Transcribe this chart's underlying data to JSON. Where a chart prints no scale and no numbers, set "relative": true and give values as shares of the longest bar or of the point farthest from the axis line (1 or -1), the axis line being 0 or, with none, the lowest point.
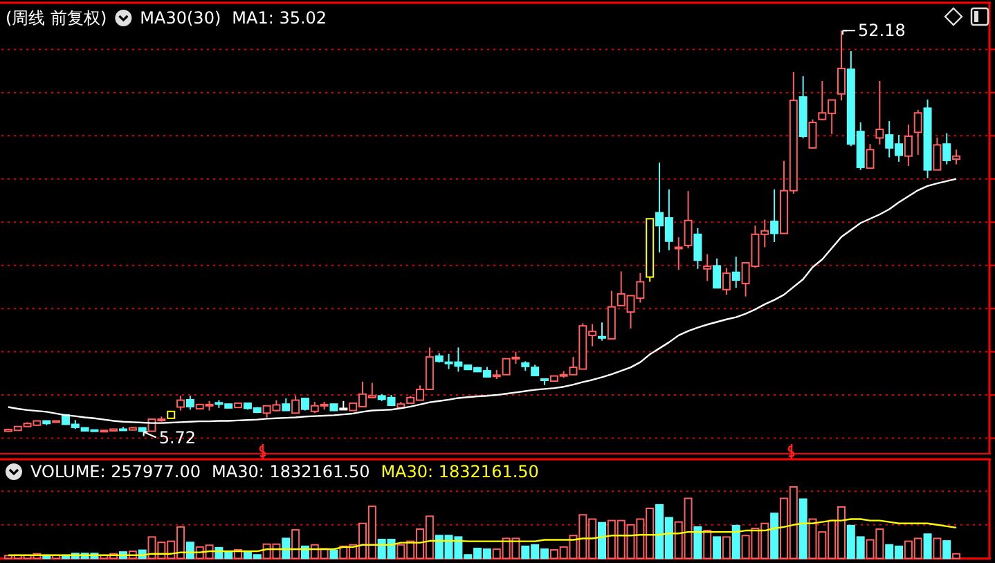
{
  "chart_data": [
    {
      "type": "candlestick",
      "title": "(周线 前复权)",
      "annotations": [
        "MA30(30)",
        "52.18",
        "5.72"
      ],
      "categories": [
        null,
        null,
        null,
        null,
        null,
        null,
        null,
        null,
        null,
        null,
        null,
        null,
        null,
        null,
        null,
        null,
        null,
        null,
        null,
        null,
        null,
        null,
        null,
        null,
        null,
        null,
        null,
        null,
        null,
        null,
        null,
        null,
        null,
        null,
        null,
        null,
        null,
        null,
        null,
        null,
        null,
        null,
        null,
        null,
        null,
        null,
        null,
        null,
        null,
        null,
        null,
        null,
        null,
        null,
        null,
        null,
        null,
        null,
        null,
        null,
        null,
        null,
        null,
        null,
        null,
        null,
        null,
        null,
        null,
        null,
        null,
        null,
        null,
        null,
        null,
        null,
        null,
        null,
        null,
        null,
        null,
        null,
        null,
        null,
        null,
        null,
        null,
        null,
        null,
        null,
        null,
        null,
        null,
        null,
        null,
        null,
        null,
        null,
        null,
        null
      ],
      "ohlc": [
        [
          5.8,
          6.1,
          5.75,
          6.0
        ],
        [
          5.9,
          6.4,
          5.85,
          6.35
        ],
        [
          6.35,
          6.85,
          6.3,
          6.7
        ],
        [
          6.5,
          7.05,
          6.45,
          7.0
        ],
        [
          7.0,
          7.05,
          6.5,
          6.7
        ],
        [
          6.85,
          7.05,
          6.8,
          7.0
        ],
        [
          7.7,
          7.75,
          6.55,
          6.6
        ],
        [
          6.6,
          7.1,
          6.05,
          6.25
        ],
        [
          6.2,
          6.25,
          5.8,
          5.85
        ],
        [
          5.95,
          6.0,
          5.8,
          5.85
        ],
        [
          5.8,
          5.95,
          5.78,
          5.9
        ],
        [
          5.85,
          6.1,
          5.8,
          6.05
        ],
        [
          6.05,
          6.3,
          5.95,
          6.0
        ],
        [
          5.95,
          6.3,
          5.9,
          6.2
        ],
        [
          6.2,
          6.25,
          5.72,
          5.8
        ],
        [
          5.8,
          7.25,
          5.78,
          7.2
        ],
        [
          7.1,
          7.5,
          6.9,
          7.2
        ],
        [
          7.3,
          8.1,
          7.3,
          8.1
        ],
        [
          8.6,
          9.9,
          8.2,
          9.4
        ],
        [
          9.45,
          9.9,
          8.3,
          8.65
        ],
        [
          8.4,
          8.9,
          8.4,
          8.9
        ],
        [
          8.75,
          9.3,
          8.2,
          8.9
        ],
        [
          9.1,
          9.4,
          8.5,
          9.0
        ],
        [
          8.95,
          9.0,
          8.45,
          8.5
        ],
        [
          8.55,
          9.1,
          8.5,
          9.05
        ],
        [
          9.05,
          9.1,
          8.3,
          8.45
        ],
        [
          8.5,
          8.6,
          7.9,
          8.0
        ],
        [
          7.9,
          8.75,
          7.4,
          8.75
        ],
        [
          8.2,
          9.4,
          8.1,
          8.85
        ],
        [
          8.95,
          9.6,
          8.2,
          8.2
        ],
        [
          7.9,
          9.9,
          7.9,
          9.4
        ],
        [
          9.6,
          9.6,
          8.2,
          8.35
        ],
        [
          8.1,
          9.2,
          7.9,
          8.75
        ],
        [
          8.8,
          9.2,
          8.3,
          8.9
        ],
        [
          8.95,
          9.0,
          8.15,
          8.2
        ],
        [
          8.45,
          9.3,
          8.45,
          8.45
        ],
        [
          8.2,
          9.05,
          8.2,
          9.05
        ],
        [
          8.65,
          11.55,
          8.65,
          10.1
        ],
        [
          9.7,
          11.4,
          9.7,
          9.9
        ],
        [
          9.9,
          10.1,
          9.3,
          9.5
        ],
        [
          9.7,
          10.0,
          8.8,
          8.8
        ],
        [
          8.55,
          9.2,
          8.55,
          8.95
        ],
        [
          9.05,
          9.9,
          9.0,
          9.7
        ],
        [
          9.4,
          11.1,
          9.4,
          10.65
        ],
        [
          10.65,
          15.5,
          10.65,
          14.4
        ],
        [
          14.5,
          14.85,
          13.75,
          13.9
        ],
        [
          13.8,
          14.75,
          13.0,
          13.75
        ],
        [
          13.8,
          15.5,
          12.7,
          13.35
        ],
        [
          13.45,
          13.5,
          12.9,
          12.95
        ],
        [
          13.15,
          13.25,
          12.7,
          12.7
        ],
        [
          12.8,
          13.25,
          12.05,
          12.1
        ],
        [
          12.2,
          12.9,
          11.85,
          12.3
        ],
        [
          12.35,
          14.2,
          12.35,
          14.2
        ],
        [
          14.25,
          15.0,
          13.6,
          14.35
        ],
        [
          13.7,
          13.9,
          12.8,
          13.3
        ],
        [
          13.2,
          13.5,
          12.25,
          12.25
        ],
        [
          11.85,
          11.85,
          11.15,
          11.8
        ],
        [
          11.6,
          12.2,
          11.6,
          12.2
        ],
        [
          12.3,
          12.75,
          12.0,
          12.35
        ],
        [
          12.35,
          14.4,
          12.35,
          13.2
        ],
        [
          13.0,
          18.3,
          13.0,
          18.0
        ],
        [
          16.9,
          18.2,
          15.65,
          17.35
        ],
        [
          16.75,
          18.4,
          16.3,
          16.7
        ],
        [
          16.5,
          22.05,
          16.5,
          20.2
        ],
        [
          20.35,
          24.3,
          20.35,
          21.7
        ],
        [
          19.6,
          21.5,
          17.7,
          21.5
        ],
        [
          21.2,
          24.1,
          20.7,
          23.1
        ],
        [
          23.65,
          30.4,
          23.1,
          30.4
        ],
        [
          31.1,
          36.9,
          26.5,
          29.6
        ],
        [
          30.5,
          33.8,
          26.75,
          27.8
        ],
        [
          27.0,
          28.25,
          24.5,
          27.1
        ],
        [
          27.3,
          33.6,
          26.97,
          30.2
        ],
        [
          28.6,
          29.3,
          24.6,
          25.6
        ],
        [
          24.6,
          26.3,
          23.2,
          24.9
        ],
        [
          24.95,
          25.8,
          22.4,
          22.4
        ],
        [
          22.2,
          24.7,
          21.6,
          24.1
        ],
        [
          24.2,
          26.0,
          22.4,
          23.3
        ],
        [
          22.9,
          25.3,
          21.4,
          25.3
        ],
        [
          24.9,
          29.6,
          24.7,
          28.6
        ],
        [
          28.6,
          30.3,
          27.1,
          29.0
        ],
        [
          30.1,
          33.8,
          27.7,
          28.7
        ],
        [
          28.7,
          37.1,
          28.7,
          33.65
        ],
        [
          33.65,
          47.4,
          33.3,
          44.1
        ],
        [
          44.5,
          46.9,
          39.7,
          39.95
        ],
        [
          38.6,
          41.9,
          38.5,
          41.55
        ],
        [
          41.9,
          46.35,
          41.8,
          42.65
        ],
        [
          42.6,
          44.15,
          40.2,
          44.15
        ],
        [
          44.85,
          52.18,
          44.1,
          47.8
        ],
        [
          47.7,
          49.8,
          38.8,
          39.05
        ],
        [
          40.5,
          41.55,
          36.05,
          36.35
        ],
        [
          36.25,
          39.05,
          36.25,
          38.4
        ],
        [
          39.75,
          46.35,
          39.0,
          40.75
        ],
        [
          40.1,
          41.7,
          37.5,
          38.6
        ],
        [
          39.05,
          40.1,
          37.0,
          37.75
        ],
        [
          37.65,
          41.3,
          36.5,
          39.95
        ],
        [
          40.4,
          43.0,
          37.8,
          42.65
        ],
        [
          43.2,
          44.2,
          35.1,
          36.05
        ],
        [
          36.05,
          39.8,
          36.05,
          38.95
        ],
        [
          39.05,
          40.3,
          36.7,
          37.15
        ],
        [
          37.3,
          38.4,
          36.7,
          37.65
        ]
      ],
      "colors": [
        "#ff5f5f",
        "#ff5f5f",
        "#ff5f5f",
        "#ff5f5f",
        "#54fcfc",
        "#ff5f5f",
        "#54fcfc",
        "#54fcfc",
        "#54fcfc",
        "#54fcfc",
        "#ff5f5f",
        "#ff5f5f",
        "#54fcfc",
        "#ff5f5f",
        "#54fcfc",
        "#ff5f5f",
        "#ff5f5f",
        "#ffff00",
        "#ff5f5f",
        "#54fcfc",
        "#ff5f5f",
        "#ff5f5f",
        "#54fcfc",
        "#54fcfc",
        "#ff5f5f",
        "#54fcfc",
        "#54fcfc",
        "#ff5f5f",
        "#ff5f5f",
        "#54fcfc",
        "#ff5f5f",
        "#54fcfc",
        "#ff5f5f",
        "#ff5f5f",
        "#54fcfc",
        "#ffffff",
        "#ff5f5f",
        "#ff5f5f",
        "#ff5f5f",
        "#54fcfc",
        "#54fcfc",
        "#ff5f5f",
        "#ff5f5f",
        "#ff5f5f",
        "#ff5f5f",
        "#54fcfc",
        "#54fcfc",
        "#54fcfc",
        "#54fcfc",
        "#54fcfc",
        "#54fcfc",
        "#ff5f5f",
        "#ff5f5f",
        "#ff5f5f",
        "#54fcfc",
        "#54fcfc",
        "#54fcfc",
        "#ff5f5f",
        "#ff5f5f",
        "#ff5f5f",
        "#ff5f5f",
        "#ff5f5f",
        "#54fcfc",
        "#ff5f5f",
        "#ff5f5f",
        "#ff5f5f",
        "#ff5f5f",
        "#ffff00",
        "#54fcfc",
        "#54fcfc",
        "#ff5f5f",
        "#ff5f5f",
        "#54fcfc",
        "#ff5f5f",
        "#54fcfc",
        "#ff5f5f",
        "#54fcfc",
        "#ff5f5f",
        "#ff5f5f",
        "#ff5f5f",
        "#54fcfc",
        "#ff5f5f",
        "#ff5f5f",
        "#54fcfc",
        "#ff5f5f",
        "#ff5f5f",
        "#ff5f5f",
        "#ff5f5f",
        "#54fcfc",
        "#54fcfc",
        "#ff5f5f",
        "#ff5f5f",
        "#54fcfc",
        "#54fcfc",
        "#ff5f5f",
        "#ff5f5f",
        "#54fcfc",
        "#ff5f5f",
        "#54fcfc",
        "#ff5f5f"
      ],
      "ylim": [
        3.2,
        55.4
      ],
      "yticks": [
        {
          "value": 5,
          "label": null
        },
        {
          "value": 10,
          "label": null
        },
        {
          "value": 15,
          "label": null
        },
        {
          "value": 20,
          "label": null
        },
        {
          "value": 25,
          "label": null
        },
        {
          "value": 30,
          "label": null
        },
        {
          "value": 35,
          "label": null
        },
        {
          "value": 40,
          "label": null
        },
        {
          "value": 45,
          "label": null
        },
        {
          "value": 50,
          "label": null
        }
      ],
      "grid": "y",
      "series": [
        {
          "type": "line",
          "name": "MA1: 35.02",
          "color": "#ffffff",
          "values": [
            8.6,
            8.4,
            8.25,
            8.15,
            8.05,
            7.85,
            7.65,
            7.55,
            7.4,
            7.3,
            7.15,
            7.0,
            6.9,
            6.85,
            6.8,
            6.75,
            6.75,
            6.8,
            6.85,
            6.9,
            6.95,
            6.95,
            7.0,
            7.0,
            7.05,
            7.1,
            7.15,
            7.25,
            7.3,
            7.35,
            7.4,
            7.5,
            7.55,
            7.6,
            7.65,
            7.75,
            7.85,
            8.05,
            8.2,
            8.25,
            8.3,
            8.45,
            8.65,
            8.9,
            9.15,
            9.3,
            9.45,
            9.65,
            9.75,
            9.85,
            9.9,
            10.0,
            10.15,
            10.3,
            10.45,
            10.6,
            10.7,
            10.8,
            10.95,
            11.2,
            11.5,
            11.75,
            12.05,
            12.4,
            12.8,
            13.2,
            13.8,
            14.7,
            15.4,
            16.1,
            16.9,
            17.4,
            17.8,
            18.15,
            18.45,
            18.75,
            19.0,
            19.4,
            19.9,
            20.5,
            21.0,
            21.6,
            22.5,
            23.4,
            24.8,
            25.7,
            27.0,
            28.3,
            29.1,
            29.9,
            30.4,
            30.9,
            31.5,
            32.3,
            33.0,
            33.7,
            34.2,
            34.5,
            34.75,
            35.02
          ]
        }
      ]
    },
    {
      "type": "bar",
      "relative": true,
      "annotations": [
        "VOLUME: 257977.00",
        "MA30: 1832161.50"
      ],
      "ref_lines": [
        {
          "axis": "y",
          "value": 0.47,
          "color": "#e00000",
          "line_style": "dotted"
        },
        {
          "axis": "y",
          "value": 0.94,
          "color": "#e00000",
          "line_style": "dotted"
        }
      ],
      "categories": [
        null,
        null,
        null,
        null,
        null,
        null,
        null,
        null,
        null,
        null,
        null,
        null,
        null,
        null,
        null,
        null,
        null,
        null,
        null,
        null,
        null,
        null,
        null,
        null,
        null,
        null,
        null,
        null,
        null,
        null,
        null,
        null,
        null,
        null,
        null,
        null,
        null,
        null,
        null,
        null,
        null,
        null,
        null,
        null,
        null,
        null,
        null,
        null,
        null,
        null,
        null,
        null,
        null,
        null,
        null,
        null,
        null,
        null,
        null,
        null,
        null,
        null,
        null,
        null,
        null,
        null,
        null,
        null,
        null,
        null,
        null,
        null,
        null,
        null,
        null,
        null,
        null,
        null,
        null,
        null,
        null,
        null,
        null,
        null,
        null,
        null,
        null,
        null,
        null,
        null,
        null,
        null,
        null,
        null,
        null,
        null,
        null,
        null,
        null,
        null
      ],
      "series": [
        {
          "type": "bar",
          "colors": [
            "#ff5f5f",
            "#ff5f5f",
            "#ff5f5f",
            "#ff5f5f",
            "#54fcfc",
            "#ff5f5f",
            "#54fcfc",
            "#54fcfc",
            "#54fcfc",
            "#54fcfc",
            "#ff5f5f",
            "#ff5f5f",
            "#54fcfc",
            "#ff5f5f",
            "#54fcfc",
            "#ff5f5f",
            "#ff5f5f",
            "#ff5f5f",
            "#ff5f5f",
            "#54fcfc",
            "#ff5f5f",
            "#ff5f5f",
            "#54fcfc",
            "#54fcfc",
            "#ff5f5f",
            "#54fcfc",
            "#54fcfc",
            "#ff5f5f",
            "#ff5f5f",
            "#54fcfc",
            "#ff5f5f",
            "#54fcfc",
            "#ff5f5f",
            "#ff5f5f",
            "#54fcfc",
            "#ff5f5f",
            "#ff5f5f",
            "#ff5f5f",
            "#ff5f5f",
            "#54fcfc",
            "#54fcfc",
            "#ff5f5f",
            "#ff5f5f",
            "#ff5f5f",
            "#ff5f5f",
            "#54fcfc",
            "#54fcfc",
            "#54fcfc",
            "#54fcfc",
            "#54fcfc",
            "#54fcfc",
            "#ff5f5f",
            "#ff5f5f",
            "#ff5f5f",
            "#54fcfc",
            "#54fcfc",
            "#54fcfc",
            "#ff5f5f",
            "#ff5f5f",
            "#ff5f5f",
            "#ff5f5f",
            "#ff5f5f",
            "#54fcfc",
            "#ff5f5f",
            "#ff5f5f",
            "#ff5f5f",
            "#ff5f5f",
            "#ff5f5f",
            "#54fcfc",
            "#54fcfc",
            "#ff5f5f",
            "#ff5f5f",
            "#54fcfc",
            "#ff5f5f",
            "#54fcfc",
            "#ff5f5f",
            "#54fcfc",
            "#ff5f5f",
            "#ff5f5f",
            "#ff5f5f",
            "#54fcfc",
            "#ff5f5f",
            "#ff5f5f",
            "#54fcfc",
            "#ff5f5f",
            "#ff5f5f",
            "#ff5f5f",
            "#ff5f5f",
            "#54fcfc",
            "#54fcfc",
            "#ff5f5f",
            "#ff5f5f",
            "#54fcfc",
            "#54fcfc",
            "#ff5f5f",
            "#ff5f5f",
            "#54fcfc",
            "#ff5f5f",
            "#54fcfc",
            "#ff5f5f"
          ],
          "values": [
            0.04,
            0.045,
            0.045,
            0.065,
            0.045,
            0.045,
            0.045,
            0.07,
            0.07,
            0.07,
            0.045,
            0.065,
            0.09,
            0.1,
            0.115,
            0.3,
            0.225,
            0.24,
            0.44,
            0.225,
            0.16,
            0.185,
            0.15,
            0.1,
            0.12,
            0.1,
            0.05,
            0.2,
            0.2,
            0.28,
            0.4,
            0.17,
            0.19,
            0.135,
            0.115,
            0.17,
            0.19,
            0.49,
            0.73,
            0.265,
            0.265,
            0.19,
            0.24,
            0.41,
            0.59,
            0.32,
            0.32,
            0.3,
            0.05,
            0.14,
            0.13,
            0.13,
            0.28,
            0.28,
            0.17,
            0.19,
            0.13,
            0.12,
            0.16,
            0.32,
            0.61,
            0.55,
            0.5,
            0.53,
            0.53,
            0.47,
            0.55,
            0.7,
            0.75,
            0.57,
            0.51,
            0.84,
            0.44,
            0.39,
            0.3,
            0.3,
            0.46,
            0.32,
            0.42,
            0.49,
            0.63,
            0.84,
            1.0,
            0.83,
            0.55,
            0.37,
            0.53,
            0.72,
            0.46,
            0.3,
            0.26,
            0.41,
            0.19,
            0.17,
            0.24,
            0.28,
            0.34,
            0.28,
            0.245,
            0.065
          ]
        },
        {
          "type": "line",
          "name": "MA30: 1832161.50",
          "color": "#ffff00",
          "values": [
            0.045,
            0.045,
            0.045,
            0.045,
            0.045,
            0.045,
            0.045,
            0.045,
            0.045,
            0.045,
            0.045,
            0.045,
            0.045,
            0.045,
            0.045,
            0.065,
            0.065,
            0.065,
            0.085,
            0.085,
            0.085,
            0.1,
            0.1,
            0.1,
            0.1,
            0.1,
            0.1,
            0.13,
            0.13,
            0.13,
            0.13,
            0.13,
            0.13,
            0.13,
            0.13,
            0.16,
            0.16,
            0.19,
            0.19,
            0.19,
            0.19,
            0.22,
            0.22,
            0.22,
            0.245,
            0.245,
            0.245,
            0.245,
            0.24,
            0.24,
            0.24,
            0.24,
            0.24,
            0.24,
            0.24,
            0.24,
            0.26,
            0.26,
            0.26,
            0.26,
            0.28,
            0.28,
            0.3,
            0.32,
            0.32,
            0.32,
            0.33,
            0.33,
            0.33,
            0.35,
            0.35,
            0.37,
            0.37,
            0.37,
            0.37,
            0.37,
            0.37,
            0.39,
            0.39,
            0.39,
            0.42,
            0.44,
            0.47,
            0.49,
            0.49,
            0.51,
            0.53,
            0.53,
            0.55,
            0.55,
            0.53,
            0.53,
            0.51,
            0.49,
            0.49,
            0.49,
            0.49,
            0.47,
            0.45,
            0.43
          ]
        }
      ]
    }
  ]
}
